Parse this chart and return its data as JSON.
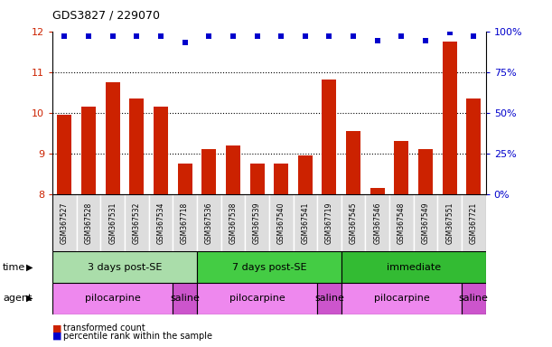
{
  "title": "GDS3827 / 229070",
  "samples": [
    "GSM367527",
    "GSM367528",
    "GSM367531",
    "GSM367532",
    "GSM367534",
    "GSM367718",
    "GSM367536",
    "GSM367538",
    "GSM367539",
    "GSM367540",
    "GSM367541",
    "GSM367719",
    "GSM367545",
    "GSM367546",
    "GSM367548",
    "GSM367549",
    "GSM367551",
    "GSM367721"
  ],
  "red_values": [
    9.95,
    10.15,
    10.75,
    10.35,
    10.15,
    8.75,
    9.1,
    9.2,
    8.75,
    8.75,
    8.95,
    10.82,
    9.55,
    8.15,
    9.3,
    9.1,
    11.75,
    10.35
  ],
  "blue_values": [
    97,
    97,
    97,
    97,
    97,
    93,
    97,
    97,
    97,
    97,
    97,
    97,
    97,
    94,
    97,
    94,
    99,
    97
  ],
  "ylim_left": [
    8,
    12
  ],
  "ylim_right": [
    0,
    100
  ],
  "yticks_left": [
    8,
    9,
    10,
    11,
    12
  ],
  "yticks_right": [
    0,
    25,
    50,
    75,
    100
  ],
  "ytick_labels_right": [
    "0%",
    "25%",
    "50%",
    "75%",
    "100%"
  ],
  "bar_color": "#cc2200",
  "dot_color": "#0000cc",
  "grid_color": "#000000",
  "time_groups": [
    {
      "label": "3 days post-SE",
      "start": 0,
      "end": 5,
      "color": "#aaddaa"
    },
    {
      "label": "7 days post-SE",
      "start": 6,
      "end": 11,
      "color": "#44cc44"
    },
    {
      "label": "immediate",
      "start": 12,
      "end": 17,
      "color": "#33bb33"
    }
  ],
  "agent_groups": [
    {
      "label": "pilocarpine",
      "start": 0,
      "end": 4,
      "color": "#ee88ee"
    },
    {
      "label": "saline",
      "start": 5,
      "end": 5,
      "color": "#cc55cc"
    },
    {
      "label": "pilocarpine",
      "start": 6,
      "end": 10,
      "color": "#ee88ee"
    },
    {
      "label": "saline",
      "start": 11,
      "end": 11,
      "color": "#cc55cc"
    },
    {
      "label": "pilocarpine",
      "start": 12,
      "end": 16,
      "color": "#ee88ee"
    },
    {
      "label": "saline",
      "start": 17,
      "end": 17,
      "color": "#cc55cc"
    }
  ],
  "legend_items": [
    {
      "label": "transformed count",
      "color": "#cc2200"
    },
    {
      "label": "percentile rank within the sample",
      "color": "#0000cc"
    }
  ],
  "left_axis_color": "#cc2200",
  "right_axis_color": "#0000cc",
  "bg_color": "#ffffff",
  "bar_width": 0.6,
  "cell_bg": "#dddddd"
}
